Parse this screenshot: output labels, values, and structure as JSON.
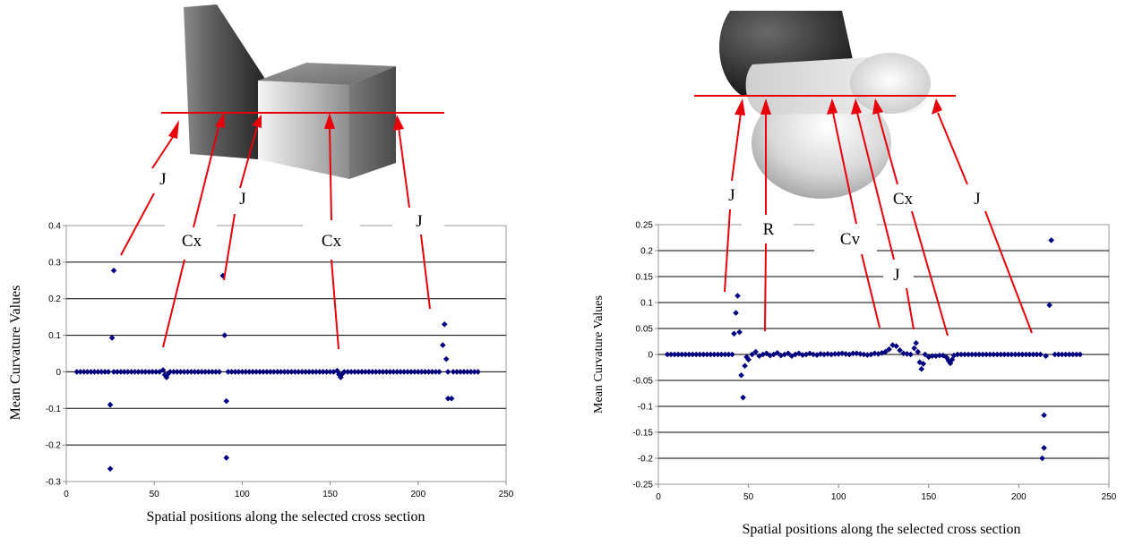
{
  "chart_data": [
    {
      "type": "scatter",
      "xlabel": "Spatial positions along the selected cross section",
      "ylabel": "Mean Curvature Values",
      "xlim": [
        0,
        250
      ],
      "ylim": [
        -0.3,
        0.4
      ],
      "xticks": [
        "0",
        "50",
        "100",
        "150",
        "200",
        "250"
      ],
      "yticks": [
        "-0.3",
        "-0.2",
        "-0.1",
        "0",
        "0.1",
        "0.2",
        "0.3",
        "0.4"
      ],
      "grid": "horizontal",
      "marker_color": "#00007f",
      "illustration": "prism-and-cube",
      "annotations": [
        "J",
        "Cx",
        "J",
        "Cx",
        "J"
      ],
      "points": [
        [
          6,
          0
        ],
        [
          8,
          0
        ],
        [
          10,
          0
        ],
        [
          12,
          0
        ],
        [
          14,
          0
        ],
        [
          16,
          0
        ],
        [
          18,
          0
        ],
        [
          20,
          0
        ],
        [
          22,
          0
        ],
        [
          24,
          0
        ],
        [
          25,
          -0.265
        ],
        [
          25,
          -0.09
        ],
        [
          26,
          0.093
        ],
        [
          27,
          0.277
        ],
        [
          27,
          0
        ],
        [
          29,
          0
        ],
        [
          31,
          0
        ],
        [
          33,
          0
        ],
        [
          35,
          0
        ],
        [
          37,
          0
        ],
        [
          39,
          0
        ],
        [
          41,
          0
        ],
        [
          43,
          0
        ],
        [
          45,
          0
        ],
        [
          47,
          0
        ],
        [
          49,
          0
        ],
        [
          51,
          0
        ],
        [
          53,
          0
        ],
        [
          55,
          0.005
        ],
        [
          56,
          -0.008
        ],
        [
          57,
          -0.015
        ],
        [
          58,
          -0.005
        ],
        [
          59,
          0
        ],
        [
          61,
          0
        ],
        [
          63,
          0
        ],
        [
          65,
          0
        ],
        [
          67,
          0
        ],
        [
          69,
          0
        ],
        [
          71,
          0
        ],
        [
          73,
          0
        ],
        [
          75,
          0
        ],
        [
          77,
          0
        ],
        [
          79,
          0
        ],
        [
          81,
          0
        ],
        [
          83,
          0
        ],
        [
          85,
          0
        ],
        [
          87,
          0
        ],
        [
          89,
          0.263
        ],
        [
          90,
          0.1
        ],
        [
          91,
          -0.08
        ],
        [
          91,
          -0.235
        ],
        [
          92,
          0
        ],
        [
          94,
          0
        ],
        [
          96,
          0
        ],
        [
          98,
          0
        ],
        [
          100,
          0
        ],
        [
          102,
          0
        ],
        [
          104,
          0
        ],
        [
          106,
          0
        ],
        [
          108,
          0
        ],
        [
          110,
          0
        ],
        [
          112,
          0
        ],
        [
          114,
          0
        ],
        [
          116,
          0
        ],
        [
          118,
          0
        ],
        [
          120,
          0
        ],
        [
          122,
          0
        ],
        [
          124,
          0
        ],
        [
          126,
          0
        ],
        [
          128,
          0
        ],
        [
          130,
          0
        ],
        [
          132,
          0
        ],
        [
          134,
          0
        ],
        [
          136,
          0
        ],
        [
          138,
          0
        ],
        [
          140,
          0
        ],
        [
          142,
          0
        ],
        [
          144,
          0
        ],
        [
          146,
          0
        ],
        [
          148,
          0
        ],
        [
          150,
          0
        ],
        [
          152,
          0
        ],
        [
          154,
          0.003
        ],
        [
          155,
          -0.007
        ],
        [
          156,
          -0.015
        ],
        [
          157,
          -0.005
        ],
        [
          158,
          0
        ],
        [
          160,
          0
        ],
        [
          162,
          0
        ],
        [
          164,
          0
        ],
        [
          166,
          0
        ],
        [
          168,
          0
        ],
        [
          170,
          0
        ],
        [
          172,
          0
        ],
        [
          174,
          0
        ],
        [
          176,
          0
        ],
        [
          178,
          0
        ],
        [
          180,
          0
        ],
        [
          182,
          0
        ],
        [
          184,
          0
        ],
        [
          186,
          0
        ],
        [
          188,
          0
        ],
        [
          190,
          0
        ],
        [
          192,
          0
        ],
        [
          194,
          0
        ],
        [
          196,
          0
        ],
        [
          198,
          0
        ],
        [
          200,
          0
        ],
        [
          202,
          0
        ],
        [
          204,
          0
        ],
        [
          206,
          0
        ],
        [
          208,
          0
        ],
        [
          210,
          0
        ],
        [
          212,
          0
        ],
        [
          214,
          0.073
        ],
        [
          215,
          0.13
        ],
        [
          216,
          0.035
        ],
        [
          217,
          -0.073
        ],
        [
          219,
          -0.073
        ],
        [
          217,
          0
        ],
        [
          220,
          0
        ],
        [
          222,
          0
        ],
        [
          224,
          0
        ],
        [
          226,
          0
        ],
        [
          228,
          0
        ],
        [
          230,
          0
        ],
        [
          232,
          0
        ],
        [
          234,
          0
        ]
      ]
    },
    {
      "type": "scatter",
      "xlabel": "Spatial positions along the selected cross section",
      "ylabel": "Mean Curvature Values",
      "xlim": [
        0,
        250
      ],
      "ylim": [
        -0.25,
        0.25
      ],
      "xticks": [
        "0",
        "50",
        "100",
        "150",
        "200",
        "250"
      ],
      "yticks": [
        "-0.25",
        "-0.2",
        "-0.15",
        "-0.1",
        "-0.05",
        "0",
        "0.05",
        "0.1",
        "0.15",
        "0.2",
        "0.25"
      ],
      "grid": "horizontal",
      "marker_color": "#00007f",
      "illustration": "intersecting-cylinders",
      "annotations": [
        "J",
        "R",
        "Cv",
        "J",
        "Cx",
        "J"
      ],
      "points": [
        [
          5,
          0
        ],
        [
          7,
          0
        ],
        [
          9,
          0
        ],
        [
          11,
          0
        ],
        [
          13,
          0
        ],
        [
          15,
          0
        ],
        [
          17,
          0
        ],
        [
          19,
          0
        ],
        [
          21,
          0
        ],
        [
          23,
          0
        ],
        [
          25,
          0
        ],
        [
          27,
          0
        ],
        [
          29,
          0
        ],
        [
          31,
          0
        ],
        [
          33,
          0
        ],
        [
          35,
          0
        ],
        [
          37,
          0
        ],
        [
          39,
          0
        ],
        [
          41,
          0
        ],
        [
          42,
          0.04
        ],
        [
          43,
          0.08
        ],
        [
          44,
          0.113
        ],
        [
          45,
          0.043
        ],
        [
          46,
          -0.04
        ],
        [
          47,
          -0.083
        ],
        [
          48,
          -0.022
        ],
        [
          49,
          -0.005
        ],
        [
          50,
          -0.01
        ],
        [
          52,
          0
        ],
        [
          54,
          0.005
        ],
        [
          56,
          -0.003
        ],
        [
          58,
          0
        ],
        [
          60,
          0.002
        ],
        [
          62,
          -0.002
        ],
        [
          64,
          0
        ],
        [
          66,
          0.003
        ],
        [
          68,
          -0.002
        ],
        [
          70,
          0
        ],
        [
          72,
          0.002
        ],
        [
          74,
          -0.003
        ],
        [
          76,
          0
        ],
        [
          78,
          0.002
        ],
        [
          80,
          -0.001
        ],
        [
          82,
          0
        ],
        [
          84,
          0.002
        ],
        [
          86,
          0
        ],
        [
          88,
          -0.001
        ],
        [
          90,
          0.001
        ],
        [
          92,
          0
        ],
        [
          94,
          0.001
        ],
        [
          96,
          0
        ],
        [
          98,
          0.001
        ],
        [
          100,
          0.001
        ],
        [
          102,
          0.002
        ],
        [
          104,
          0.001
        ],
        [
          106,
          0
        ],
        [
          108,
          0.002
        ],
        [
          110,
          0.002
        ],
        [
          112,
          0.001
        ],
        [
          114,
          0
        ],
        [
          116,
          -0.001
        ],
        [
          118,
          0
        ],
        [
          120,
          0.002
        ],
        [
          122,
          0.001
        ],
        [
          124,
          0.003
        ],
        [
          126,
          0.005
        ],
        [
          128,
          0.01
        ],
        [
          130,
          0.018
        ],
        [
          132,
          0.016
        ],
        [
          134,
          0.008
        ],
        [
          136,
          0.002
        ],
        [
          138,
          0.001
        ],
        [
          140,
          0
        ],
        [
          142,
          0.012
        ],
        [
          143,
          0.022
        ],
        [
          144,
          0.005
        ],
        [
          145,
          -0.015
        ],
        [
          146,
          -0.028
        ],
        [
          147,
          -0.018
        ],
        [
          148,
          0
        ],
        [
          150,
          -0.005
        ],
        [
          152,
          -0.003
        ],
        [
          154,
          -0.003
        ],
        [
          156,
          -0.002
        ],
        [
          158,
          -0.002
        ],
        [
          160,
          -0.006
        ],
        [
          161,
          -0.012
        ],
        [
          162,
          -0.017
        ],
        [
          163,
          -0.01
        ],
        [
          164,
          -0.002
        ],
        [
          166,
          0
        ],
        [
          168,
          0
        ],
        [
          170,
          0
        ],
        [
          172,
          0
        ],
        [
          174,
          0
        ],
        [
          176,
          0
        ],
        [
          178,
          0
        ],
        [
          180,
          0
        ],
        [
          182,
          0
        ],
        [
          184,
          0
        ],
        [
          186,
          0
        ],
        [
          188,
          0
        ],
        [
          190,
          0
        ],
        [
          192,
          0
        ],
        [
          194,
          0
        ],
        [
          196,
          0
        ],
        [
          198,
          0
        ],
        [
          200,
          0
        ],
        [
          202,
          0
        ],
        [
          204,
          0
        ],
        [
          206,
          0
        ],
        [
          208,
          0
        ],
        [
          210,
          0
        ],
        [
          212,
          0
        ],
        [
          213,
          -0.2
        ],
        [
          214,
          -0.18
        ],
        [
          214,
          -0.117
        ],
        [
          215,
          -0.003
        ],
        [
          217,
          0.095
        ],
        [
          218,
          0.22
        ],
        [
          220,
          0
        ],
        [
          222,
          0
        ],
        [
          224,
          0
        ],
        [
          226,
          0
        ],
        [
          228,
          0
        ],
        [
          230,
          0
        ],
        [
          232,
          0
        ],
        [
          234,
          0
        ]
      ]
    }
  ]
}
